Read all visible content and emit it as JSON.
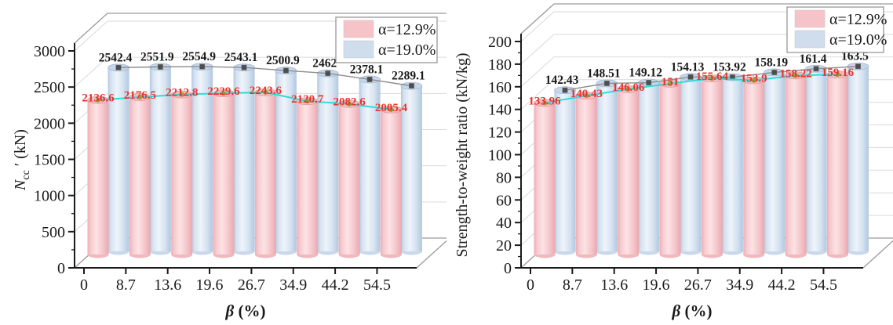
{
  "figure": {
    "background": "#ffffff",
    "description": "Two 3D cylinder bar charts comparing series at two steel ratios across beta"
  },
  "chart_data": [
    {
      "type": "bar",
      "style": "3d-cylinder",
      "title": "",
      "xlabel": "β (%)",
      "ylabel": "N_cc′ (kN)",
      "ylabel_parts": {
        "pre": "N",
        "sub": "cc",
        "post": " ′ (kN)"
      },
      "categories": [
        "0",
        "8.7",
        "13.6",
        "19.6",
        "26.7",
        "34.9",
        "44.2",
        "54.5"
      ],
      "ylim": [
        0,
        3000
      ],
      "ytick_step": 500,
      "ytick_minor_step": 250,
      "grid": true,
      "legend_position": "top-right",
      "series": [
        {
          "name": "α=12.9%",
          "fill": "#f6c3c8",
          "values": [
            2136.6,
            2176.5,
            2212.8,
            2229.6,
            2243.6,
            2120.7,
            2082.6,
            2005.4
          ],
          "label_color": "#e8332b",
          "line_color": "#2bdcdc",
          "marker": "circle",
          "marker_color": "#7fae3f"
        },
        {
          "name": "α=19.0%",
          "fill": "#cfdded",
          "values": [
            2542.4,
            2551.9,
            2554.9,
            2543.1,
            2500.9,
            2462,
            2378.1,
            2289.1
          ],
          "label_color": "#1a1a1a",
          "line_color": "#8d8d8d",
          "marker": "square",
          "marker_color": "#4d4d4d"
        }
      ]
    },
    {
      "type": "bar",
      "style": "3d-cylinder",
      "title": "",
      "xlabel": "β (%)",
      "ylabel": "Strength-to-weight ratio (kN/kg)",
      "categories": [
        "0",
        "8.7",
        "13.6",
        "19.6",
        "26.7",
        "34.9",
        "44.2",
        "54.5"
      ],
      "ylim": [
        0,
        200
      ],
      "ytick_step": 20,
      "ytick_minor_step": 10,
      "grid": true,
      "legend_position": "top-right",
      "series": [
        {
          "name": "α=12.9%",
          "fill": "#f6c3c8",
          "values": [
            133.96,
            140.43,
            146.06,
            151,
            155.64,
            153.9,
            158.22,
            159.16
          ],
          "label_color": "#e8332b",
          "line_color": "#2bdcdc",
          "marker": "circle",
          "marker_color": "#7fae3f"
        },
        {
          "name": "α=19.0%",
          "fill": "#cfdded",
          "values": [
            142.43,
            148.51,
            149.12,
            154.13,
            153.92,
            158.19,
            161.4,
            163.5
          ],
          "label_color": "#1a1a1a",
          "line_color": "#8d8d8d",
          "marker": "square",
          "marker_color": "#4d4d4d"
        }
      ]
    }
  ]
}
